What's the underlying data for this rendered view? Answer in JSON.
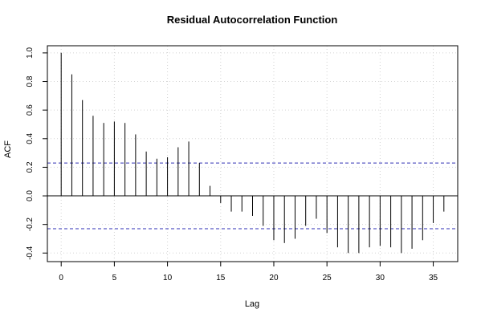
{
  "chart_data": {
    "type": "bar",
    "title": "Residual Autocorrelation Function",
    "xlabel": "Lag",
    "ylabel": "ACF",
    "xlim": [
      -1.3,
      37.3
    ],
    "ylim": [
      -0.46,
      1.05
    ],
    "x_ticks": [
      0,
      5,
      10,
      15,
      20,
      25,
      30,
      35
    ],
    "y_ticks": [
      -0.4,
      -0.2,
      0.0,
      0.2,
      0.4,
      0.6,
      0.8,
      1.0
    ],
    "grid": true,
    "confidence_bound": 0.23,
    "lags": [
      0,
      1,
      2,
      3,
      4,
      5,
      6,
      7,
      8,
      9,
      10,
      11,
      12,
      13,
      14,
      15,
      16,
      17,
      18,
      19,
      20,
      21,
      22,
      23,
      24,
      25,
      26,
      27,
      28,
      29,
      30,
      31,
      32,
      33,
      34,
      35,
      36
    ],
    "values": [
      1.0,
      0.85,
      0.67,
      0.56,
      0.51,
      0.52,
      0.51,
      0.43,
      0.31,
      0.26,
      0.27,
      0.34,
      0.38,
      0.23,
      0.07,
      -0.05,
      -0.11,
      -0.11,
      -0.14,
      -0.21,
      -0.31,
      -0.33,
      -0.3,
      -0.21,
      -0.16,
      -0.26,
      -0.36,
      -0.4,
      -0.4,
      -0.36,
      -0.35,
      -0.36,
      -0.4,
      -0.37,
      -0.31,
      -0.19,
      -0.11
    ]
  }
}
